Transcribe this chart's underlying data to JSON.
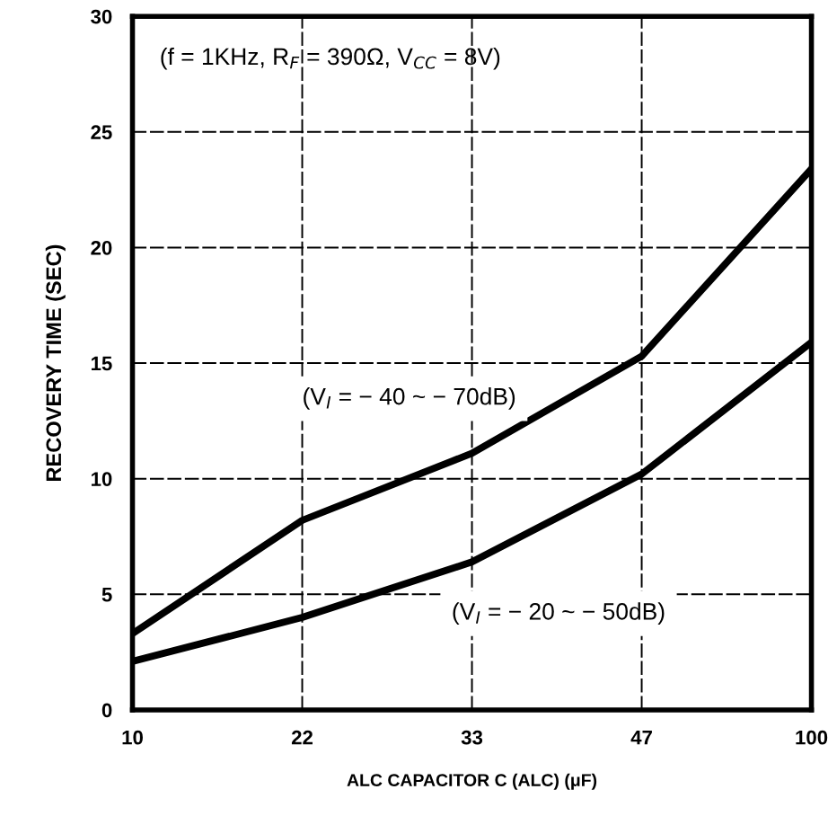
{
  "chart_data": {
    "type": "line",
    "xlabel": "ALC CAPACITOR C (ALC) (μF)",
    "ylabel": "RECOVERY TIME (SEC)",
    "annotations": [
      "(f = 1KHz, R$_{F}$ = 390Ω, V$_{CC}$ = 8V)"
    ],
    "categories": [
      "10",
      "22",
      "33",
      "47",
      "100"
    ],
    "ylim": [
      0,
      30
    ],
    "yticks": [
      0,
      5,
      10,
      15,
      20,
      25,
      30
    ],
    "grid": true,
    "series": [
      {
        "name": "(V$_{I}$ = − 40 ~ − 70dB)",
        "color": "#000000",
        "values": [
          3.3,
          8.2,
          11.1,
          15.3,
          23.4
        ]
      },
      {
        "name": "(V$_{I}$ = − 20 ~ − 50dB)",
        "color": "#000000",
        "values": [
          2.1,
          4.0,
          6.4,
          10.2,
          15.9
        ]
      }
    ]
  }
}
